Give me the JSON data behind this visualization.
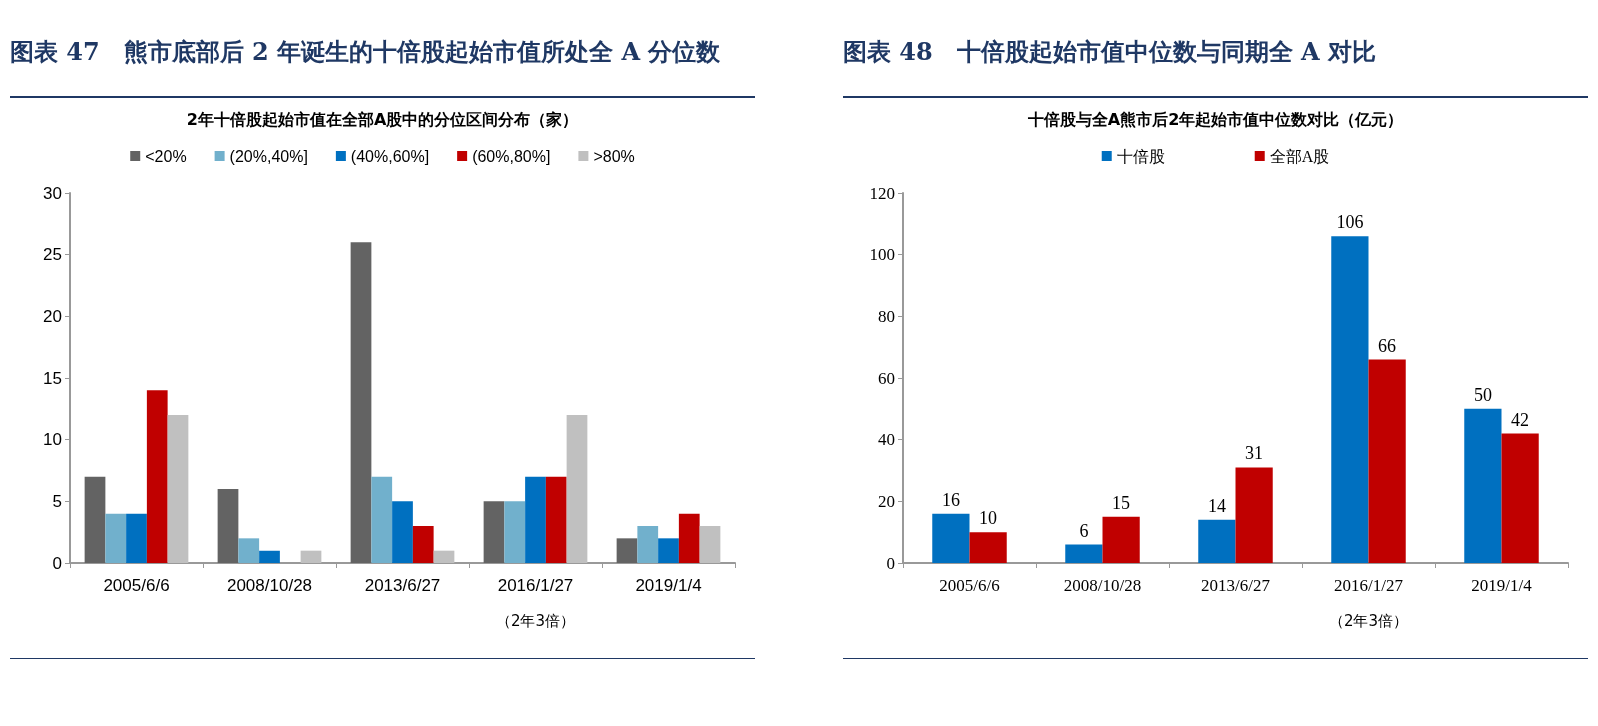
{
  "chart_data": [
    {
      "type": "bar",
      "title": "图表 47　熊市底部后 2 年诞生的十倍股起始市值所处全 A 分位数",
      "subtitle": "2年十倍股起始市值在全部A股中的分位区间分布（家）",
      "categories": [
        "2005/6/6",
        "2008/10/28",
        "2013/6/27",
        "2016/1/27",
        "2019/1/4"
      ],
      "series": [
        {
          "name": "<20%",
          "color": "#636363",
          "values": [
            7,
            6,
            26,
            5,
            2
          ]
        },
        {
          "name": "(20%,40%]",
          "color": "#71b0cc",
          "values": [
            4,
            2,
            7,
            5,
            3
          ]
        },
        {
          "name": "(40%,60%]",
          "color": "#0070c0",
          "values": [
            4,
            1,
            5,
            7,
            2
          ]
        },
        {
          "name": "(60%,80%]",
          "color": "#c00000",
          "values": [
            14,
            0,
            3,
            7,
            4
          ]
        },
        {
          "name": ">80%",
          "color": "#c0c0c0",
          "values": [
            12,
            1,
            1,
            12,
            3
          ]
        }
      ],
      "ylim": [
        0,
        30
      ],
      "yticks": [
        0,
        5,
        10,
        15,
        20,
        25,
        30
      ],
      "grid": false,
      "legend": "top",
      "annotations": [
        "（2年3倍）"
      ]
    },
    {
      "type": "bar",
      "title": "图表 48　十倍股起始市值中位数与同期全 A 对比",
      "subtitle": "十倍股与全A熊市后2年起始市值中位数对比（亿元）",
      "categories": [
        "2005/6/6",
        "2008/10/28",
        "2013/6/27",
        "2016/1/27",
        "2019/1/4"
      ],
      "series": [
        {
          "name": "十倍股",
          "color": "#0070c0",
          "values": [
            16,
            6,
            14,
            106,
            50
          ]
        },
        {
          "name": "全部A股",
          "color": "#c00000",
          "values": [
            10,
            15,
            31,
            66,
            42
          ]
        }
      ],
      "ylim": [
        0,
        120
      ],
      "yticks": [
        0,
        20,
        40,
        60,
        80,
        100,
        120
      ],
      "grid": false,
      "legend": "top",
      "data_labels": true,
      "annotations": [
        "（2年3倍）"
      ]
    }
  ]
}
